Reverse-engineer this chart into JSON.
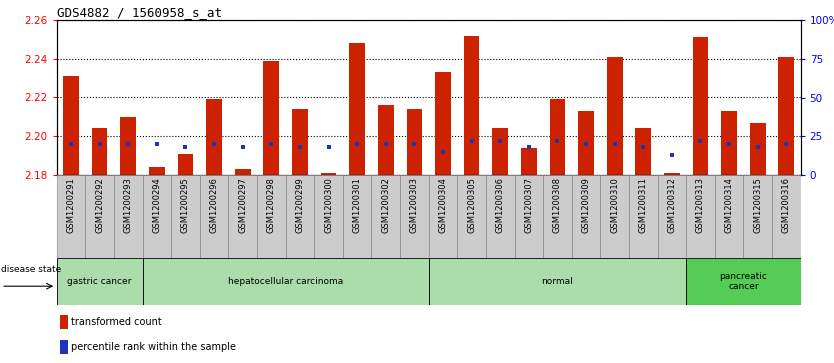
{
  "title": "GDS4882 / 1560958_s_at",
  "samples": [
    "GSM1200291",
    "GSM1200292",
    "GSM1200293",
    "GSM1200294",
    "GSM1200295",
    "GSM1200296",
    "GSM1200297",
    "GSM1200298",
    "GSM1200299",
    "GSM1200300",
    "GSM1200301",
    "GSM1200302",
    "GSM1200303",
    "GSM1200304",
    "GSM1200305",
    "GSM1200306",
    "GSM1200307",
    "GSM1200308",
    "GSM1200309",
    "GSM1200310",
    "GSM1200311",
    "GSM1200312",
    "GSM1200313",
    "GSM1200314",
    "GSM1200315",
    "GSM1200316"
  ],
  "transformed_count": [
    2.231,
    2.204,
    2.21,
    2.184,
    2.191,
    2.219,
    2.183,
    2.239,
    2.214,
    2.181,
    2.248,
    2.216,
    2.214,
    2.233,
    2.252,
    2.204,
    2.194,
    2.219,
    2.213,
    2.241,
    2.204,
    2.181,
    2.251,
    2.213,
    2.207,
    2.241
  ],
  "percentile_rank": [
    20,
    20,
    20,
    20,
    18,
    20,
    18,
    20,
    18,
    18,
    20,
    20,
    20,
    15,
    22,
    22,
    18,
    22,
    20,
    20,
    18,
    13,
    22,
    20,
    18,
    20
  ],
  "ylim_left": [
    2.18,
    2.26
  ],
  "ylim_right": [
    0,
    100
  ],
  "yticks_left": [
    2.18,
    2.2,
    2.22,
    2.24,
    2.26
  ],
  "yticks_right": [
    0,
    25,
    50,
    75,
    100
  ],
  "ytick_labels_right": [
    "0",
    "25",
    "50",
    "75",
    "100%"
  ],
  "bar_color": "#CC2200",
  "marker_color": "#2233BB",
  "disease_groups": [
    {
      "label": "gastric cancer",
      "start": 0,
      "end": 2,
      "color": "#AADDAA"
    },
    {
      "label": "hepatocellular carcinoma",
      "start": 3,
      "end": 12,
      "color": "#AADDAA"
    },
    {
      "label": "normal",
      "start": 13,
      "end": 21,
      "color": "#AADDAA"
    },
    {
      "label": "pancreatic\ncancer",
      "start": 22,
      "end": 25,
      "color": "#55CC55"
    }
  ],
  "disease_state_label": "disease state",
  "legend_row1_color": "#CC2200",
  "legend_row1_label": "transformed count",
  "legend_row2_color": "#2233BB",
  "legend_row2_label": "percentile rank within the sample",
  "bar_width": 0.55,
  "title_fontsize": 9,
  "tick_fontsize": 6.0,
  "ytick_fontsize": 7.5,
  "xtick_bg_color": "#CCCCCC",
  "xtick_border_color": "#888888"
}
